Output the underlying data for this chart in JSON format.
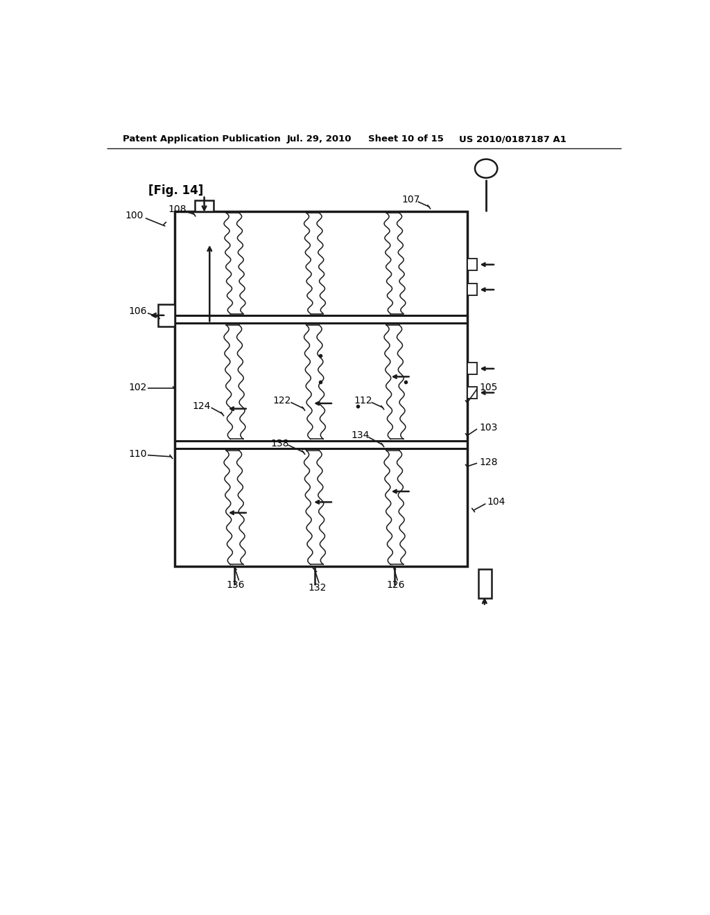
{
  "bg_color": "#ffffff",
  "header_text": "Patent Application Publication",
  "header_date": "Jul. 29, 2010",
  "header_sheet": "Sheet 10 of 15",
  "header_patent": "US 2010/0187187 A1",
  "fig_label": "[Fig. 14]",
  "line_color": "#1a1a1a",
  "line_width": 1.8
}
